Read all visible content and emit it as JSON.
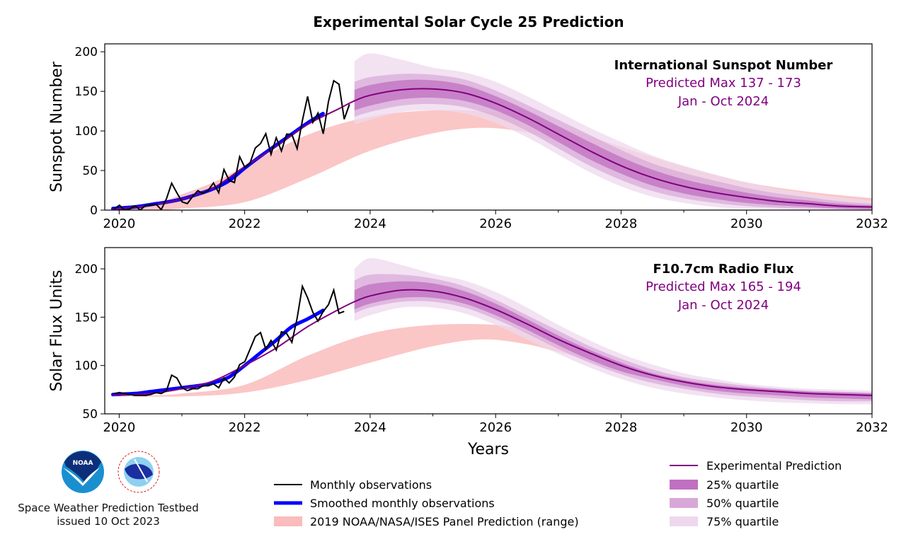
{
  "title": "Experimental Solar Cycle 25 Prediction",
  "footer": {
    "org": "Space Weather Prediction Testbed",
    "issued": "issued 10 Oct 2023",
    "logos": [
      "NOAA",
      "NATIONAL WEATHER SERVICE"
    ]
  },
  "legend_left": [
    "Monthly observations",
    "Smoothed monthly observations",
    "2019 NOAA/NASA/ISES Panel Prediction (range)"
  ],
  "legend_right": [
    "Experimental Prediction",
    "25% quartile",
    "50% quartile",
    "75% quartile"
  ],
  "colors": {
    "observed": "#000000",
    "smoothed": "#0000ff",
    "panel": "#f8a0a0",
    "prediction": "#800080",
    "q25": "#c070c0",
    "q50": "#d8a8d8",
    "q75": "#eed8ee"
  },
  "chart_data": [
    {
      "type": "line",
      "ylabel": "Sunspot Number",
      "xlabel": "",
      "xlim": [
        2019.77,
        2032
      ],
      "ylim": [
        0,
        210
      ],
      "xticks": [
        2020,
        2022,
        2024,
        2026,
        2028,
        2030,
        2032
      ],
      "yticks": [
        0,
        50,
        100,
        150,
        200
      ],
      "annotation": {
        "title": "International Sunspot Number",
        "max": "Predicted Max 137 - 173",
        "window": "Jan - Oct 2024"
      },
      "observed": {
        "x_start": 2019.92,
        "step": 0.08333,
        "values": [
          1.5,
          6.2,
          0.2,
          1.5,
          5.2,
          0.2,
          5.8,
          6.1,
          7.5,
          0.6,
          14.4,
          34.0,
          21.8,
          10.4,
          8.2,
          17.2,
          24.5,
          21.2,
          25.0,
          34.3,
          22.0,
          51.3,
          37.4,
          34.8,
          67.5,
          54.0,
          59.7,
          78.5,
          84.1,
          96.5,
          70.5,
          91.4,
          74.6,
          96.0,
          95.5,
          77.6,
          113.1,
          143.6,
          110.9,
          122.6,
          96.4,
          137.4,
          163.4,
          159.1,
          114.8,
          133.6
        ]
      },
      "smoothed": {
        "x": [
          2019.9,
          2020.25,
          2020.5,
          2020.75,
          2021,
          2021.25,
          2021.5,
          2021.75,
          2022,
          2022.25,
          2022.5,
          2022.75,
          2023,
          2023.25
        ],
        "values": [
          2,
          4,
          7,
          10,
          14,
          20,
          27,
          37,
          53,
          68,
          82,
          96,
          110,
          122
        ]
      },
      "prediction": {
        "x": [
          2019.9,
          2020.5,
          2021,
          2021.5,
          2022,
          2022.5,
          2023,
          2023.5,
          2023.75,
          2024,
          2024.5,
          2025,
          2025.5,
          2026,
          2026.5,
          2027,
          2027.5,
          2028,
          2028.5,
          2029,
          2029.5,
          2030,
          2030.5,
          2031,
          2031.5,
          2032
        ],
        "values": [
          1,
          6,
          14,
          28,
          55,
          80,
          108,
          128,
          138,
          145,
          152,
          153,
          148,
          135,
          117,
          96,
          75,
          56,
          41,
          30,
          22,
          16,
          11,
          8,
          5,
          4
        ]
      },
      "quartiles": {
        "x": [
          2023.75,
          2024,
          2024.5,
          2025,
          2025.5,
          2026,
          2026.5,
          2027,
          2027.5,
          2028,
          2028.5,
          2029,
          2029.5,
          2030,
          2030.5,
          2031,
          2031.5,
          2032
        ],
        "q75": {
          "lo": [
            108,
            114,
            124,
            126,
            122,
            110,
            92,
            70,
            48,
            30,
            17,
            9,
            4,
            2,
            1,
            0,
            0,
            0
          ],
          "hi": [
            188,
            198,
            190,
            180,
            174,
            162,
            144,
            124,
            104,
            86,
            69,
            56,
            45,
            35,
            27,
            21,
            16,
            12
          ]
        },
        "q50": {
          "lo": [
            118,
            124,
            132,
            134,
            130,
            118,
            100,
            78,
            56,
            38,
            24,
            15,
            9,
            5,
            3,
            2,
            1,
            0
          ],
          "hi": [
            162,
            168,
            172,
            171,
            165,
            151,
            133,
            114,
            95,
            76,
            59,
            47,
            37,
            28,
            21,
            16,
            11,
            8
          ]
        },
        "q25": {
          "lo": [
            126,
            132,
            140,
            142,
            138,
            126,
            108,
            86,
            64,
            46,
            31,
            21,
            14,
            9,
            6,
            4,
            2,
            1
          ],
          "hi": [
            152,
            158,
            164,
            164,
            158,
            144,
            126,
            106,
            86,
            67,
            51,
            39,
            30,
            22,
            16,
            12,
            8,
            6
          ]
        }
      },
      "panel_range": {
        "upper": {
          "x": [
            2019.8,
            2020.5,
            2021,
            2021.5,
            2022,
            2023,
            2024,
            2025,
            2026,
            2026.5,
            2027,
            2028,
            2029,
            2030,
            2031,
            2032
          ],
          "values": [
            0,
            6,
            20,
            35,
            55,
            95,
            118,
            126,
            124,
            118,
            106,
            80,
            55,
            35,
            23,
            15
          ]
        },
        "lower": {
          "x": [
            2019.8,
            2020.5,
            2021,
            2022,
            2023,
            2024,
            2025,
            2025.8,
            2026.5,
            2027,
            2028,
            2029,
            2030,
            2031,
            2032
          ],
          "values": [
            0,
            0,
            2,
            10,
            40,
            75,
            97,
            104,
            98,
            85,
            55,
            30,
            14,
            6,
            2
          ]
        }
      }
    },
    {
      "type": "line",
      "ylabel": "Solar Flux Units",
      "xlabel": "Years",
      "xlim": [
        2019.77,
        2032
      ],
      "ylim": [
        50,
        222
      ],
      "xticks": [
        2020,
        2022,
        2024,
        2026,
        2028,
        2030,
        2032
      ],
      "yticks": [
        50,
        100,
        150,
        200
      ],
      "annotation": {
        "title": "F10.7cm Radio Flux",
        "max": "Predicted Max 165 - 194",
        "window": "Jan - Oct 2024"
      },
      "observed": {
        "x_start": 2019.92,
        "step": 0.08333,
        "values": [
          71,
          72,
          71,
          70,
          69,
          69,
          69,
          70,
          72,
          71,
          74,
          90,
          87,
          77,
          74,
          76,
          76,
          79,
          79,
          81,
          77,
          87,
          82,
          88,
          101,
          104,
          117,
          130,
          134,
          117,
          126,
          116,
          135,
          133,
          124,
          149,
          182,
          170,
          155,
          146,
          156,
          163,
          178,
          154,
          156
        ]
      },
      "smoothed": {
        "x": [
          2019.9,
          2020.25,
          2020.5,
          2020.75,
          2021,
          2021.25,
          2021.5,
          2021.75,
          2022,
          2022.25,
          2022.5,
          2022.75,
          2023,
          2023.25
        ],
        "values": [
          70,
          71,
          73,
          75,
          77,
          79,
          82,
          88,
          100,
          113,
          126,
          140,
          148,
          157
        ]
      },
      "prediction": {
        "x": [
          2019.9,
          2020.5,
          2021,
          2021.5,
          2022,
          2022.5,
          2023,
          2023.5,
          2023.75,
          2024,
          2024.5,
          2025,
          2025.5,
          2026,
          2026.5,
          2027,
          2027.5,
          2028,
          2028.5,
          2029,
          2029.5,
          2030,
          2030.5,
          2031,
          2031.5,
          2032
        ],
        "values": [
          69,
          71,
          76,
          84,
          100,
          118,
          140,
          158,
          166,
          172,
          178,
          177,
          170,
          158,
          143,
          127,
          113,
          100,
          90,
          83,
          78,
          75,
          73,
          71,
          70,
          69
        ]
      },
      "quartiles": {
        "x": [
          2023.75,
          2024,
          2024.5,
          2025,
          2025.5,
          2026,
          2026.5,
          2027,
          2027.5,
          2028,
          2028.5,
          2029,
          2029.5,
          2030,
          2030.5,
          2031,
          2031.5,
          2032
        ],
        "q75": {
          "lo": [
            146,
            152,
            160,
            160,
            154,
            142,
            127,
            112,
            98,
            86,
            77,
            71,
            67,
            64,
            62,
            61,
            60,
            60
          ],
          "hi": [
            200,
            211,
            204,
            195,
            188,
            176,
            160,
            142,
            126,
            112,
            101,
            92,
            86,
            81,
            78,
            76,
            75,
            74
          ]
        },
        "q50": {
          "lo": [
            154,
            160,
            166,
            166,
            160,
            148,
            133,
            117,
            103,
            91,
            82,
            76,
            71,
            68,
            66,
            64,
            63,
            63
          ],
          "hi": [
            188,
            194,
            194,
            190,
            182,
            168,
            152,
            136,
            120,
            107,
            96,
            88,
            83,
            79,
            76,
            74,
            73,
            72
          ]
        },
        "q25": {
          "lo": [
            158,
            164,
            170,
            170,
            164,
            152,
            137,
            121,
            106,
            94,
            86,
            79,
            74,
            71,
            69,
            67,
            66,
            65
          ],
          "hi": [
            178,
            184,
            187,
            185,
            177,
            164,
            148,
            131,
            116,
            103,
            92,
            85,
            80,
            77,
            75,
            73,
            72,
            71
          ]
        }
      },
      "panel_range": {
        "upper": {
          "x": [
            2019.8,
            2020.5,
            2021,
            2022,
            2023,
            2024,
            2025,
            2026,
            2026.5,
            2027,
            2028,
            2029,
            2030,
            2031,
            2032
          ],
          "values": [
            68,
            69,
            71,
            80,
            110,
            133,
            142,
            142,
            135,
            122,
            100,
            86,
            78,
            74,
            72
          ]
        },
        "lower": {
          "x": [
            2019.8,
            2021,
            2022,
            2023,
            2024,
            2025,
            2025.8,
            2026.5,
            2027,
            2028,
            2029,
            2030,
            2031,
            2032
          ],
          "values": [
            68,
            68,
            72,
            85,
            103,
            120,
            127,
            122,
            114,
            98,
            84,
            76,
            72,
            70
          ]
        }
      }
    }
  ]
}
